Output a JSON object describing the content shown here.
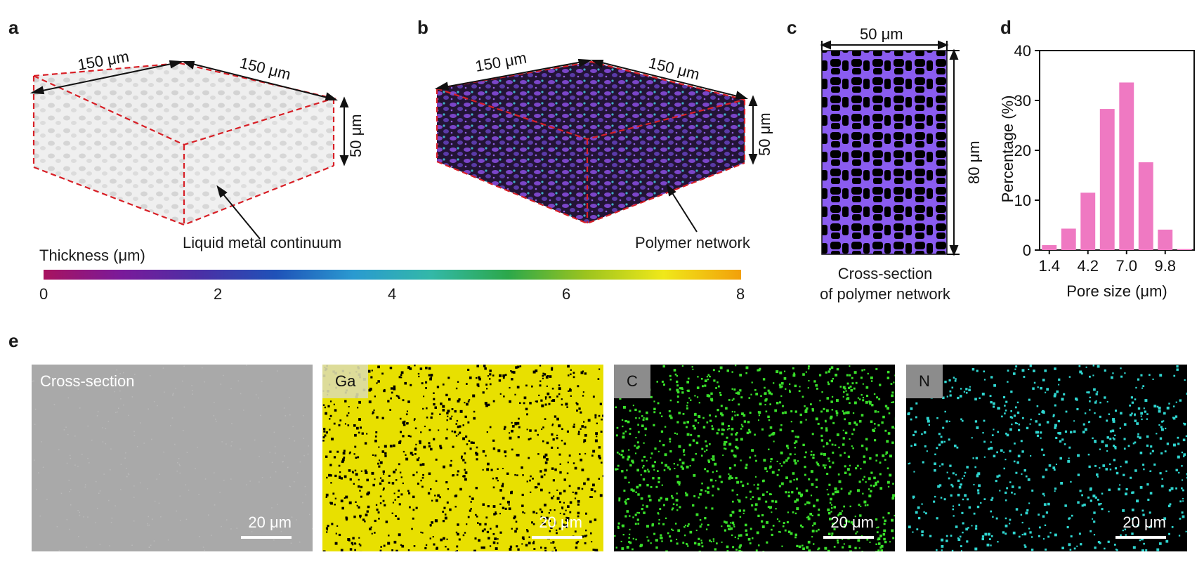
{
  "panel_labels": {
    "a": "a",
    "b": "b",
    "c": "c",
    "d": "d",
    "e": "e"
  },
  "panel_a": {
    "dim_left": "150 μm",
    "dim_right": "150 μm",
    "dim_height": "50 μm",
    "annotation": "Liquid metal continuum"
  },
  "panel_b": {
    "dim_left": "150 μm",
    "dim_right": "150 μm",
    "dim_height": "50 μm",
    "annotation": "Polymer network"
  },
  "colorbar": {
    "title": "Thickness (μm)",
    "ticks": [
      "0",
      "2",
      "4",
      "6",
      "8"
    ],
    "colors": [
      "#a8135f",
      "#7a1a9a",
      "#4b2fa5",
      "#1f52b8",
      "#2a9ad0",
      "#33b8a8",
      "#2ca84a",
      "#9cc41e",
      "#f0e81a",
      "#f2a00a"
    ]
  },
  "panel_c": {
    "width_label": "50 μm",
    "height_label": "80 μm",
    "caption_line1": "Cross-section",
    "caption_line2": "of polymer network",
    "network_color": "#8a5cf0"
  },
  "chart_data": {
    "type": "bar",
    "categories": [
      "1.4",
      "2.8",
      "4.2",
      "5.6",
      "7.0",
      "8.4",
      "9.8",
      "11.2"
    ],
    "tick_labels": [
      "1.4",
      "4.2",
      "7.0",
      "9.8"
    ],
    "values": [
      1,
      4.3,
      11.5,
      28.3,
      33.6,
      17.6,
      4.1,
      0.2
    ],
    "title": "",
    "xlabel": "Pore size (μm)",
    "ylabel": "Percentage (%)",
    "ylim": [
      0,
      40
    ],
    "yticks": [
      "0",
      "10",
      "20",
      "30",
      "40"
    ],
    "bar_color": "#ef79c2",
    "grid": false
  },
  "panel_e": {
    "maps": [
      {
        "tag": "Cross-section",
        "scale": "20 μm",
        "bg": "#a9a9a9",
        "dot": "#c4c4c4"
      },
      {
        "tag": "Ga",
        "scale": "20 μm",
        "bg": "#e8e000",
        "dot": "#000000"
      },
      {
        "tag": "C",
        "scale": "20 μm",
        "bg": "#000000",
        "dot": "#39e02a"
      },
      {
        "tag": "N",
        "scale": "20 μm",
        "bg": "#000000",
        "dot": "#2fd6d0"
      }
    ]
  }
}
